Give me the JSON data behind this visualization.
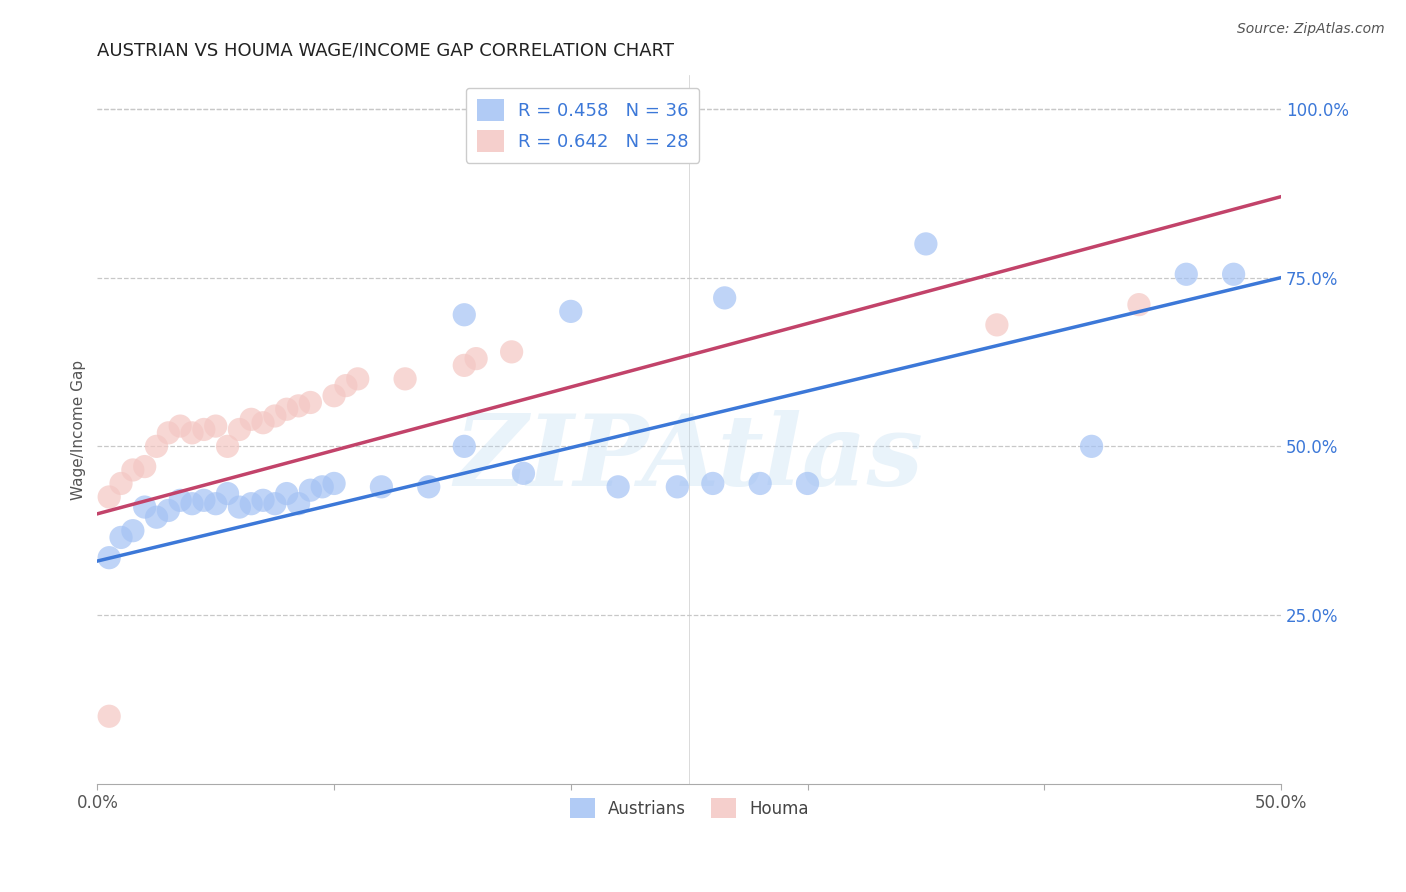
{
  "title": "AUSTRIAN VS HOUMA WAGE/INCOME GAP CORRELATION CHART",
  "source": "Source: ZipAtlas.com",
  "ylabel": "Wage/Income Gap",
  "x_min": 0.0,
  "x_max": 0.5,
  "y_min": 0.0,
  "y_max": 1.05,
  "x_ticks": [
    0.0,
    0.1,
    0.2,
    0.3,
    0.4,
    0.5
  ],
  "x_tick_labels": [
    "0.0%",
    "",
    "",
    "",
    "",
    "50.0%"
  ],
  "y_ticks_right": [
    0.25,
    0.5,
    0.75,
    1.0
  ],
  "y_tick_labels_right": [
    "25.0%",
    "50.0%",
    "75.0%",
    "100.0%"
  ],
  "background_color": "#ffffff",
  "grid_color": "#c8c8c8",
  "blue_color": "#a4c2f4",
  "pink_color": "#f4c7c3",
  "blue_line_color": "#3c78d8",
  "pink_line_color": "#c2436a",
  "blue_r": 0.458,
  "blue_n": 36,
  "pink_r": 0.642,
  "pink_n": 28,
  "watermark": "ZIPAtlas",
  "legend_label_blue": "Austrians",
  "legend_label_pink": "Houma",
  "blue_line_y0": 0.33,
  "blue_line_y1": 0.75,
  "pink_line_y0": 0.4,
  "pink_line_y1": 0.87,
  "austrians_x": [
    0.005,
    0.01,
    0.015,
    0.02,
    0.025,
    0.03,
    0.035,
    0.04,
    0.045,
    0.05,
    0.055,
    0.06,
    0.065,
    0.07,
    0.075,
    0.08,
    0.085,
    0.09,
    0.095,
    0.1,
    0.12,
    0.14,
    0.155,
    0.18,
    0.2,
    0.22,
    0.245,
    0.26,
    0.28,
    0.3,
    0.155,
    0.265,
    0.35,
    0.42,
    0.46,
    0.48
  ],
  "austrians_y": [
    0.335,
    0.365,
    0.375,
    0.41,
    0.395,
    0.405,
    0.42,
    0.415,
    0.42,
    0.415,
    0.43,
    0.41,
    0.415,
    0.42,
    0.415,
    0.43,
    0.415,
    0.435,
    0.44,
    0.445,
    0.44,
    0.44,
    0.5,
    0.46,
    0.7,
    0.44,
    0.44,
    0.445,
    0.445,
    0.445,
    0.695,
    0.72,
    0.8,
    0.5,
    0.755,
    0.755
  ],
  "houma_x": [
    0.005,
    0.01,
    0.015,
    0.02,
    0.025,
    0.03,
    0.035,
    0.04,
    0.045,
    0.05,
    0.055,
    0.06,
    0.065,
    0.07,
    0.075,
    0.08,
    0.085,
    0.09,
    0.1,
    0.105,
    0.11,
    0.13,
    0.155,
    0.16,
    0.175,
    0.005,
    0.38,
    0.44
  ],
  "houma_y": [
    0.425,
    0.445,
    0.465,
    0.47,
    0.5,
    0.52,
    0.53,
    0.52,
    0.525,
    0.53,
    0.5,
    0.525,
    0.54,
    0.535,
    0.545,
    0.555,
    0.56,
    0.565,
    0.575,
    0.59,
    0.6,
    0.6,
    0.62,
    0.63,
    0.64,
    0.1,
    0.68,
    0.71
  ]
}
